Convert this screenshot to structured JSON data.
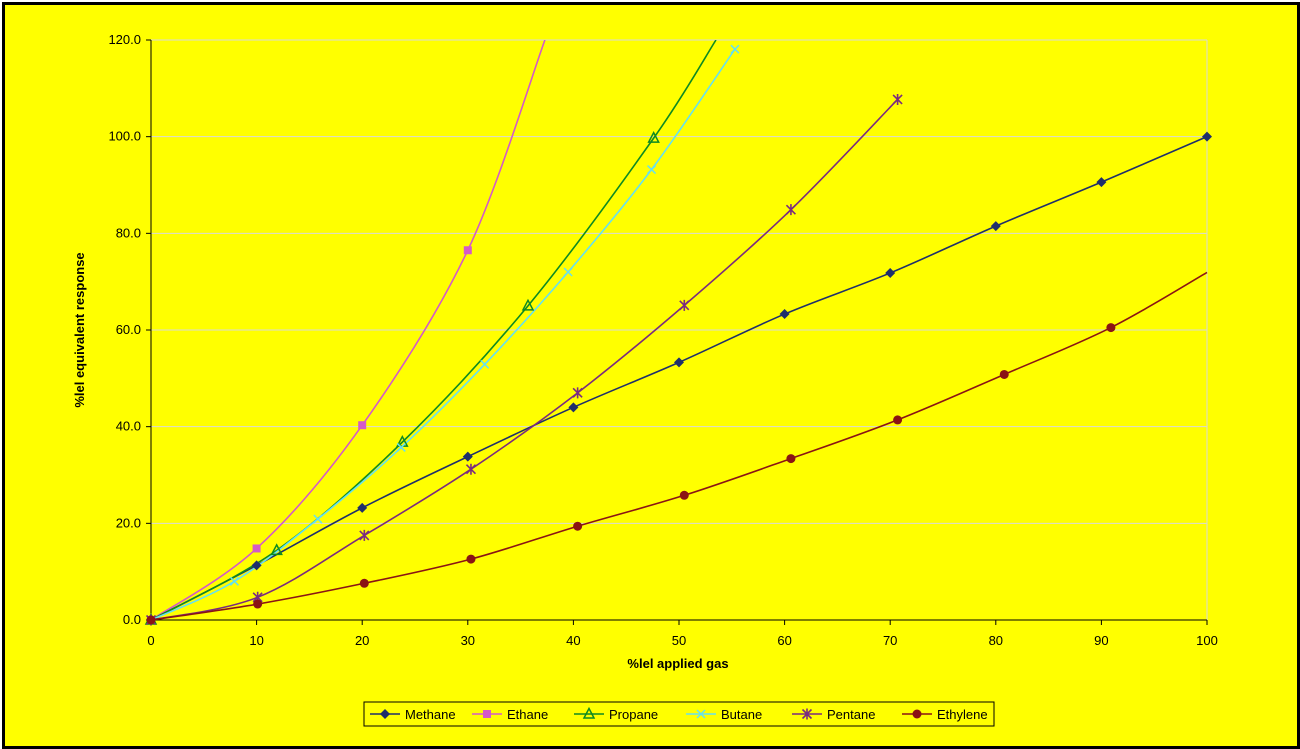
{
  "chart_data": {
    "type": "line",
    "xlabel": "%lel applied gas",
    "ylabel": "%lel equivalent response",
    "xlim": [
      0,
      100
    ],
    "ylim": [
      0,
      120
    ],
    "xticks": [
      "0",
      "10",
      "20",
      "30",
      "40",
      "50",
      "60",
      "70",
      "80",
      "90",
      "100"
    ],
    "yticks": [
      "0.0",
      "20.0",
      "40.0",
      "60.0",
      "80.0",
      "100.0",
      "120.0"
    ],
    "grid": "horizontal",
    "legend_position": "bottom",
    "colors": {
      "background": "#ffff00",
      "frame": "#000000"
    },
    "series": [
      {
        "name": "Methane",
        "color": "#1f2f6b",
        "marker": "diamond",
        "points": [
          [
            0,
            0
          ],
          [
            10,
            11.3
          ],
          [
            20,
            23.2
          ],
          [
            30,
            33.8
          ],
          [
            40,
            44.0
          ],
          [
            50,
            53.3
          ],
          [
            60,
            63.3
          ],
          [
            70,
            71.8
          ],
          [
            80,
            81.5
          ],
          [
            90,
            90.6
          ],
          [
            100,
            100
          ]
        ]
      },
      {
        "name": "Ethane",
        "color": "#d45ac8",
        "marker": "square",
        "points": [
          [
            0,
            0
          ],
          [
            10,
            14.8
          ],
          [
            20,
            40.3
          ],
          [
            30,
            76.5
          ],
          [
            37.3,
            120
          ]
        ],
        "marked": [
          [
            0,
            0
          ],
          [
            10,
            14.8
          ],
          [
            20,
            40.3
          ],
          [
            30,
            76.5
          ]
        ]
      },
      {
        "name": "Propane",
        "color": "#0e8a22",
        "marker": "triangle",
        "points": [
          [
            0,
            0
          ],
          [
            11.9,
            14.4
          ],
          [
            23.8,
            36.8
          ],
          [
            35.7,
            65.0
          ],
          [
            47.6,
            99.7
          ],
          [
            53.5,
            120
          ]
        ],
        "marked": [
          [
            0,
            0
          ],
          [
            11.9,
            14.4
          ],
          [
            23.8,
            36.8
          ],
          [
            35.7,
            65.0
          ],
          [
            47.6,
            99.7
          ]
        ]
      },
      {
        "name": "Butane",
        "color": "#66e0f0",
        "marker": "x",
        "points": [
          [
            0,
            0
          ],
          [
            7.9,
            8.0
          ],
          [
            15.8,
            20.9
          ],
          [
            23.7,
            35.7
          ],
          [
            31.6,
            52.9
          ],
          [
            39.5,
            72.0
          ],
          [
            47.4,
            93.2
          ],
          [
            55.3,
            118.1
          ]
        ]
      },
      {
        "name": "Pentane",
        "color": "#7a2b7f",
        "marker": "star",
        "points": [
          [
            0,
            0
          ],
          [
            10.1,
            4.7
          ],
          [
            20.2,
            17.5
          ],
          [
            30.3,
            31.2
          ],
          [
            40.4,
            47.0
          ],
          [
            50.5,
            65.1
          ],
          [
            60.6,
            84.9
          ],
          [
            70.7,
            107.7
          ]
        ]
      },
      {
        "name": "Ethylene",
        "color": "#8a1414",
        "marker": "circle",
        "points": [
          [
            0,
            0
          ],
          [
            10.1,
            3.3
          ],
          [
            20.2,
            7.6
          ],
          [
            30.3,
            12.6
          ],
          [
            40.4,
            19.4
          ],
          [
            50.5,
            25.8
          ],
          [
            60.6,
            33.4
          ],
          [
            70.7,
            41.4
          ],
          [
            80.8,
            50.8
          ],
          [
            90.9,
            60.5
          ],
          [
            100,
            71.9
          ]
        ],
        "marked": [
          [
            0,
            0
          ],
          [
            10.1,
            3.3
          ],
          [
            20.2,
            7.6
          ],
          [
            30.3,
            12.6
          ],
          [
            40.4,
            19.4
          ],
          [
            50.5,
            25.8
          ],
          [
            60.6,
            33.4
          ],
          [
            70.7,
            41.4
          ],
          [
            80.8,
            50.8
          ],
          [
            90.9,
            60.5
          ]
        ]
      }
    ]
  }
}
